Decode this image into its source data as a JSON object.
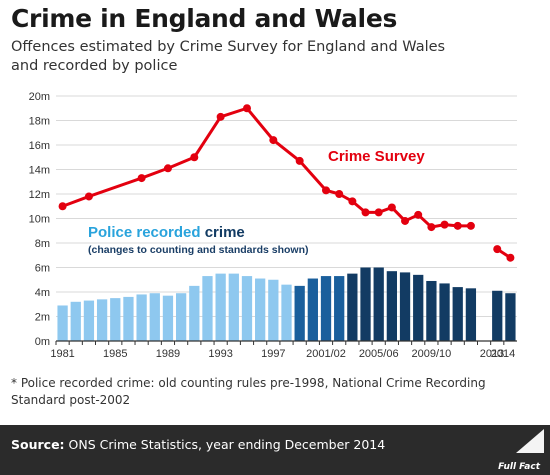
{
  "title": "Crime in England and Wales",
  "subtitle": "Offences estimated by Crime Survey for England and Wales and recorded by police",
  "footnote": "* Police recorded crime: old counting rules pre-1998, National Crime Recording Standard post-2002",
  "source_label": "Source:",
  "source_text": "ONS Crime Statistics, year ending December 2014",
  "logo_text": "Full Fact",
  "colors": {
    "survey": "#e3000f",
    "police_old": "#8ec8ef",
    "police_mid": "#1a5f9c",
    "police_nrcs": "#123b63",
    "accent_text": "#29a3dc"
  },
  "chart_data": {
    "type": "bar",
    "ylim": [
      0,
      20
    ],
    "yticks": [
      "0m",
      "2m",
      "4m",
      "6m",
      "8m",
      "10m",
      "12m",
      "14m",
      "16m",
      "18m",
      "20m"
    ],
    "xticks": [
      "1981",
      "1985",
      "1989",
      "1993",
      "1997",
      "2001/02",
      "2005/06",
      "2009/10",
      "2013",
      "2014"
    ],
    "grid": true,
    "series": [
      {
        "name": "Crime Survey",
        "type": "line",
        "segments": [
          {
            "x": [
              0,
              2,
              6,
              8,
              10,
              12,
              14,
              16,
              18,
              20,
              21,
              22,
              23,
              24,
              25,
              26,
              27,
              28,
              29,
              30,
              31
            ],
            "y": [
              11.0,
              11.8,
              13.3,
              14.1,
              15.0,
              18.3,
              19.0,
              16.4,
              14.7,
              12.3,
              12.0,
              11.4,
              10.5,
              10.5,
              10.9,
              9.8,
              10.3,
              9.3,
              9.5,
              9.4,
              9.4
            ]
          },
          {
            "x": [
              33,
              34
            ],
            "y": [
              7.5,
              6.8
            ]
          }
        ]
      },
      {
        "name": "Police recorded crime",
        "type": "bar",
        "sublabel": "(changes to counting and standards shown)",
        "x": [
          0,
          1,
          2,
          3,
          4,
          5,
          6,
          7,
          8,
          9,
          10,
          11,
          12,
          13,
          14,
          15,
          16,
          17,
          18,
          19,
          20,
          21,
          22,
          23,
          24,
          25,
          26,
          27,
          28,
          29,
          30,
          31,
          33,
          34
        ],
        "values": [
          2.9,
          3.2,
          3.3,
          3.4,
          3.5,
          3.6,
          3.8,
          3.9,
          3.7,
          3.9,
          4.5,
          5.3,
          5.5,
          5.5,
          5.3,
          5.1,
          5.0,
          4.6,
          4.5,
          5.1,
          5.3,
          5.3,
          5.5,
          6.0,
          6.0,
          5.7,
          5.6,
          5.4,
          4.9,
          4.7,
          4.4,
          4.3,
          4.1,
          3.9
        ],
        "periods": [
          "old",
          "old",
          "old",
          "old",
          "old",
          "old",
          "old",
          "old",
          "old",
          "old",
          "old",
          "old",
          "old",
          "old",
          "old",
          "old",
          "old",
          "old",
          "mid",
          "mid",
          "mid",
          "mid",
          "nrcs",
          "nrcs",
          "nrcs",
          "nrcs",
          "nrcs",
          "nrcs",
          "nrcs",
          "nrcs",
          "nrcs",
          "nrcs",
          "nrcs",
          "nrcs"
        ]
      }
    ]
  }
}
